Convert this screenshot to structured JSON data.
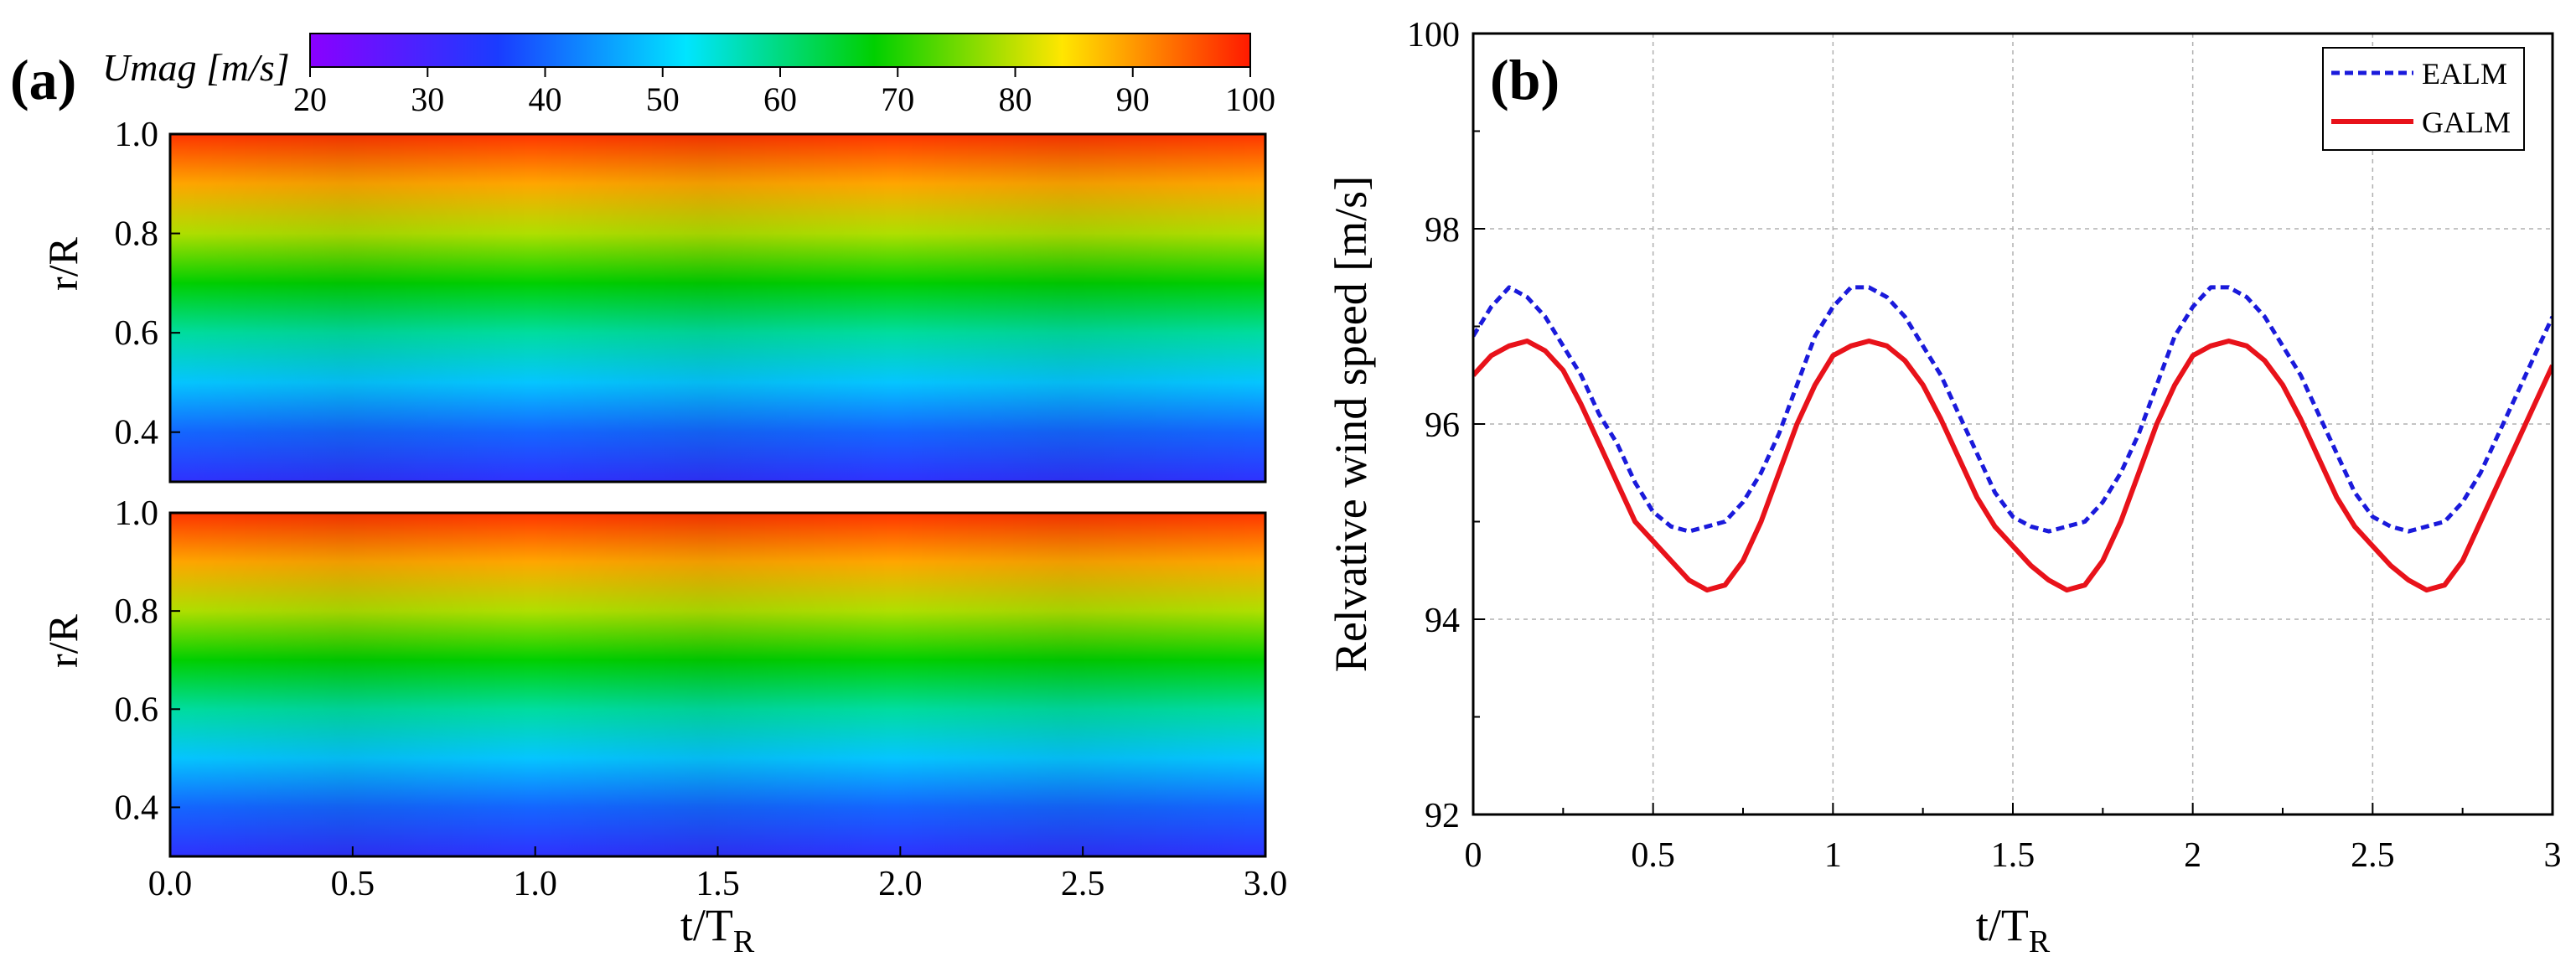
{
  "panel_a": {
    "label": "(a)",
    "colorbar": {
      "title": "Umag [m/s]",
      "ticks": [
        "20",
        "30",
        "40",
        "50",
        "60",
        "70",
        "80",
        "90",
        "100"
      ],
      "range": [
        20,
        100
      ],
      "colormap": [
        "#8a00ff",
        "#1a3cff",
        "#00e5ff",
        "#00d000",
        "#ffe600",
        "#ff1a00"
      ]
    },
    "top_plot": {
      "ylabel": "r/R",
      "yticks": [
        "1.0",
        "0.8",
        "0.6",
        "0.4"
      ]
    },
    "bottom_plot": {
      "ylabel": "r/R",
      "yticks": [
        "1.0",
        "0.8",
        "0.6",
        "0.4"
      ],
      "xticks": [
        "0.0",
        "0.5",
        "1.0",
        "1.5",
        "2.0",
        "2.5",
        "3.0"
      ],
      "xlabel_main": "t/T",
      "xlabel_sub": "R"
    }
  },
  "panel_b": {
    "label": "(b)"
  },
  "chart_data": [
    {
      "type": "heatmap",
      "title": "",
      "xlabel": "t/T_R",
      "ylabel": "r/R",
      "x_range": [
        0.0,
        3.0
      ],
      "y_range": [
        0.3,
        1.0
      ],
      "value_label": "Umag [m/s]",
      "value_range": [
        20,
        100
      ],
      "description_of_field": "Umag increases with r/R; weak periodic ripple with period ~1 t/T_R",
      "samples": {
        "r_over_R": [
          0.3,
          0.4,
          0.5,
          0.6,
          0.7,
          0.8,
          0.9,
          1.0
        ],
        "umag": [
          33,
          40,
          49,
          58,
          68,
          79,
          89,
          98
        ]
      }
    },
    {
      "type": "line",
      "title": "",
      "xlabel": "t/T",
      "xlabel_sub": "R",
      "ylabel": "Relvative wind speed [m/s]",
      "xlim": [
        0,
        3
      ],
      "ylim": [
        92,
        100
      ],
      "xticks": [
        0,
        0.5,
        1,
        1.5,
        2,
        2.5,
        3
      ],
      "xtick_labels": [
        "0",
        "0.5",
        "1",
        "1.5",
        "2",
        "2.5",
        "3"
      ],
      "yticks": [
        92,
        94,
        96,
        98,
        100
      ],
      "ytick_labels": [
        "92",
        "94",
        "96",
        "98",
        "100"
      ],
      "grid": true,
      "legend": "top-right",
      "series": [
        {
          "name": "EALM",
          "color": "#1a1adb",
          "style": "dashed",
          "x": [
            0,
            0.05,
            0.1,
            0.15,
            0.2,
            0.25,
            0.3,
            0.35,
            0.4,
            0.45,
            0.5,
            0.55,
            0.6,
            0.65,
            0.7,
            0.75,
            0.8,
            0.85,
            0.9,
            0.95,
            1.0,
            1.05,
            1.1,
            1.15,
            1.2,
            1.25,
            1.3,
            1.35,
            1.4,
            1.45,
            1.5,
            1.55,
            1.6,
            1.65,
            1.7,
            1.75,
            1.8,
            1.85,
            1.9,
            1.95,
            2.0,
            2.05,
            2.1,
            2.15,
            2.2,
            2.25,
            2.3,
            2.35,
            2.4,
            2.45,
            2.5,
            2.55,
            2.6,
            2.65,
            2.7,
            2.75,
            2.8,
            2.85,
            2.9,
            2.95,
            3.0
          ],
          "y": [
            96.9,
            97.2,
            97.4,
            97.3,
            97.1,
            96.8,
            96.5,
            96.1,
            95.8,
            95.4,
            95.1,
            94.95,
            94.9,
            94.95,
            95.0,
            95.2,
            95.5,
            95.9,
            96.4,
            96.9,
            97.2,
            97.4,
            97.4,
            97.3,
            97.1,
            96.8,
            96.5,
            96.1,
            95.7,
            95.3,
            95.05,
            94.95,
            94.9,
            94.95,
            95.0,
            95.2,
            95.5,
            95.9,
            96.4,
            96.9,
            97.2,
            97.4,
            97.4,
            97.3,
            97.1,
            96.8,
            96.5,
            96.1,
            95.7,
            95.3,
            95.05,
            94.95,
            94.9,
            94.95,
            95.0,
            95.2,
            95.5,
            95.9,
            96.3,
            96.7,
            97.1
          ]
        },
        {
          "name": "GALM",
          "color": "#e8121a",
          "style": "solid",
          "x": [
            0,
            0.05,
            0.1,
            0.15,
            0.2,
            0.25,
            0.3,
            0.35,
            0.4,
            0.45,
            0.5,
            0.55,
            0.6,
            0.65,
            0.7,
            0.75,
            0.8,
            0.85,
            0.9,
            0.95,
            1.0,
            1.05,
            1.1,
            1.15,
            1.2,
            1.25,
            1.3,
            1.35,
            1.4,
            1.45,
            1.5,
            1.55,
            1.6,
            1.65,
            1.7,
            1.75,
            1.8,
            1.85,
            1.9,
            1.95,
            2.0,
            2.05,
            2.1,
            2.15,
            2.2,
            2.25,
            2.3,
            2.35,
            2.4,
            2.45,
            2.5,
            2.55,
            2.6,
            2.65,
            2.7,
            2.75,
            2.8,
            2.85,
            2.9,
            2.95,
            3.0
          ],
          "y": [
            96.5,
            96.7,
            96.8,
            96.85,
            96.75,
            96.55,
            96.2,
            95.8,
            95.4,
            95.0,
            94.8,
            94.6,
            94.4,
            94.3,
            94.35,
            94.6,
            95.0,
            95.5,
            96.0,
            96.4,
            96.7,
            96.8,
            96.85,
            96.8,
            96.65,
            96.4,
            96.05,
            95.65,
            95.25,
            94.95,
            94.75,
            94.55,
            94.4,
            94.3,
            94.35,
            94.6,
            95.0,
            95.5,
            96.0,
            96.4,
            96.7,
            96.8,
            96.85,
            96.8,
            96.65,
            96.4,
            96.05,
            95.65,
            95.25,
            94.95,
            94.75,
            94.55,
            94.4,
            94.3,
            94.35,
            94.6,
            95.0,
            95.4,
            95.8,
            96.2,
            96.6
          ]
        }
      ]
    }
  ]
}
